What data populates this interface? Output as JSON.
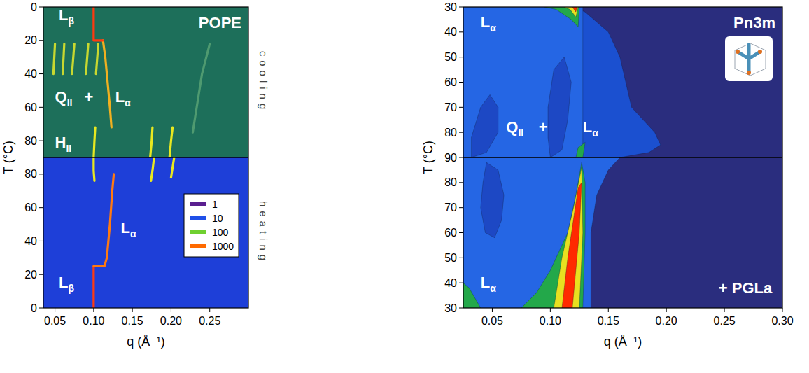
{
  "chart_data": [
    {
      "type": "heatmap",
      "title": "POPE",
      "xlabel": "q (Å⁻¹)",
      "ylabel": "T (°C)",
      "xlim": [
        0.035,
        0.3
      ],
      "xticks": [
        0.05,
        {
          "value": 0.1,
          "label": "0.10"
        },
        0.15,
        {
          "value": 0.2,
          "label": "0.20"
        },
        0.25
      ],
      "sections": [
        {
          "label": "cooling",
          "color": "#1d6f5a",
          "ylim": [
            0,
            90
          ],
          "yticks": [
            0,
            20,
            40,
            60,
            80
          ]
        },
        {
          "label": "heating",
          "color": "#1e3fd8",
          "ylim": [
            90,
            0
          ],
          "yticks": [
            0,
            20,
            40,
            60,
            80
          ]
        }
      ],
      "colorbar": {
        "values": [
          1,
          10,
          100,
          1000
        ],
        "colors": [
          "#5a1f8f",
          "#2050e8",
          "#6fd030",
          "#ff6a00"
        ]
      },
      "series": [
        {
          "section": 1,
          "type": "line",
          "color": "#ff3a10",
          "x": [
            0.1,
            0.1,
            0.1
          ],
          "y": [
            0,
            12,
            25
          ]
        },
        {
          "section": 1,
          "type": "line",
          "color": "#ff7a10",
          "x": [
            0.1,
            0.114,
            0.117,
            0.121,
            0.124,
            0.126
          ],
          "y": [
            25,
            25,
            30,
            50,
            70,
            80
          ]
        },
        {
          "section": 1,
          "type": "line",
          "color": "#e8e820",
          "x": [
            0.101,
            0.1,
            0.1
          ],
          "y": [
            76,
            82,
            90
          ]
        },
        {
          "section": 1,
          "type": "line",
          "color": "#e8e820",
          "x": [
            0.174,
            0.176,
            0.178
          ],
          "y": [
            76,
            82,
            90
          ]
        },
        {
          "section": 1,
          "type": "line",
          "color": "#e8e820",
          "x": [
            0.2,
            0.202,
            0.204
          ],
          "y": [
            78,
            84,
            90
          ]
        },
        {
          "section": 0,
          "type": "line",
          "color": "#e8e820",
          "x": [
            0.1,
            0.101,
            0.102
          ],
          "y": [
            90,
            80,
            72
          ]
        },
        {
          "section": 0,
          "type": "line",
          "color": "#e8e820",
          "x": [
            0.173,
            0.175,
            0.176
          ],
          "y": [
            90,
            80,
            72
          ]
        },
        {
          "section": 0,
          "type": "line",
          "color": "#e8e820",
          "x": [
            0.198,
            0.2,
            0.202
          ],
          "y": [
            90,
            80,
            72
          ]
        },
        {
          "section": 0,
          "type": "line",
          "color": "#f0b020",
          "x": [
            0.123,
            0.121,
            0.118,
            0.115,
            0.112
          ],
          "y": [
            72,
            60,
            45,
            30,
            20
          ]
        },
        {
          "section": 0,
          "type": "line",
          "color": "#ff3a10",
          "x": [
            0.1,
            0.1,
            0.112
          ],
          "y": [
            0,
            20,
            20
          ]
        },
        {
          "section": 0,
          "type": "line",
          "color": "#c8d830",
          "x": [
            0.048,
            0.05
          ],
          "y": [
            40,
            22
          ]
        },
        {
          "section": 0,
          "type": "line",
          "color": "#c8d830",
          "x": [
            0.06,
            0.062
          ],
          "y": [
            40,
            22
          ]
        },
        {
          "section": 0,
          "type": "line",
          "color": "#c8d830",
          "x": [
            0.072,
            0.075
          ],
          "y": [
            40,
            22
          ]
        },
        {
          "section": 0,
          "type": "line",
          "color": "#c8d830",
          "x": [
            0.09,
            0.093
          ],
          "y": [
            40,
            22
          ]
        },
        {
          "section": 0,
          "type": "line",
          "color": "#c8d830",
          "x": [
            0.103,
            0.106
          ],
          "y": [
            40,
            22
          ]
        },
        {
          "section": 0,
          "type": "line",
          "color": "#4f9a70",
          "x": [
            0.228,
            0.24,
            0.25
          ],
          "y": [
            75,
            40,
            22
          ]
        }
      ],
      "annotations": [
        {
          "text": "Lβ",
          "section": 0,
          "x": 0.055,
          "y": 8
        },
        {
          "text": "QII",
          "section": 0,
          "x": 0.05,
          "y": 57
        },
        {
          "text": "+",
          "section": 0,
          "x": 0.088,
          "y": 57
        },
        {
          "text": "Lα",
          "section": 0,
          "x": 0.128,
          "y": 57
        },
        {
          "text": "HII",
          "section": 0,
          "x": 0.05,
          "y": 84
        },
        {
          "text": "Lα",
          "section": 1,
          "x": 0.135,
          "y": 45
        },
        {
          "text": "Lβ",
          "section": 1,
          "x": 0.055,
          "y": 12
        }
      ]
    },
    {
      "type": "heatmap",
      "title": "Pn3m",
      "xlabel": "q (Å⁻¹)",
      "ylabel": "T (°C)",
      "xlim": [
        0.025,
        0.3
      ],
      "xticks": [
        0.05,
        {
          "value": 0.1,
          "label": "0.10"
        },
        0.15,
        {
          "value": 0.2,
          "label": "0.20"
        },
        0.25,
        {
          "value": 0.3,
          "label": "0.30"
        }
      ],
      "sections": [
        {
          "color": "#2a2d7e",
          "ylim": [
            30,
            90
          ],
          "yticks": [
            30,
            40,
            50,
            60,
            70,
            80,
            90
          ]
        },
        {
          "color": "#2a2d7e",
          "ylim": [
            90,
            30
          ],
          "yticks": [
            30,
            40,
            50,
            60,
            70,
            80
          ]
        }
      ],
      "series": [
        {
          "section": 1,
          "type": "polygon",
          "color": "#2566e4",
          "x": [
            0.025,
            0.135,
            0.135,
            0.14,
            0.15,
            0.16,
            0.025
          ],
          "y": [
            30,
            30,
            60,
            75,
            85,
            90,
            90
          ]
        },
        {
          "section": 1,
          "type": "polygon",
          "color": "#1d48c4",
          "x": [
            0.045,
            0.055,
            0.06,
            0.058,
            0.052,
            0.044,
            0.04,
            0.042
          ],
          "y": [
            88,
            85,
            75,
            65,
            58,
            60,
            70,
            80
          ]
        },
        {
          "section": 1,
          "type": "polygon",
          "color": "#23a84a",
          "x": [
            0.025,
            0.04,
            0.03,
            0.025
          ],
          "y": [
            30,
            30,
            38,
            40
          ]
        },
        {
          "section": 1,
          "type": "polygon",
          "color": "#23a84a",
          "x": [
            0.075,
            0.128,
            0.13,
            0.13,
            0.127,
            0.122,
            0.115,
            0.1,
            0.088
          ],
          "y": [
            30,
            30,
            60,
            80,
            88,
            75,
            60,
            45,
            36
          ]
        },
        {
          "section": 1,
          "type": "polygon",
          "color": "#e8e020",
          "x": [
            0.103,
            0.125,
            0.128,
            0.127,
            0.12,
            0.11
          ],
          "y": [
            30,
            30,
            60,
            86,
            70,
            50
          ]
        },
        {
          "section": 1,
          "type": "polygon",
          "color": "#ff2a00",
          "x": [
            0.11,
            0.119,
            0.125,
            0.127,
            0.124,
            0.115
          ],
          "y": [
            30,
            30,
            60,
            80,
            78,
            50
          ]
        },
        {
          "section": 0,
          "type": "polygon",
          "color": "#1b50d0",
          "x": [
            0.025,
            0.12,
            0.13,
            0.15,
            0.16,
            0.165,
            0.17,
            0.19,
            0.195,
            0.185,
            0.16,
            0.025
          ],
          "y": [
            30,
            30,
            32,
            40,
            50,
            60,
            70,
            80,
            85,
            88,
            90,
            90
          ]
        },
        {
          "section": 0,
          "type": "polygon",
          "color": "#2566e4",
          "x": [
            0.025,
            0.128,
            0.128,
            0.125,
            0.025
          ],
          "y": [
            30,
            30,
            88,
            90,
            90
          ]
        },
        {
          "section": 0,
          "type": "polygon",
          "color": "#1d48c4",
          "x": [
            0.032,
            0.045,
            0.055,
            0.055,
            0.048,
            0.04,
            0.032
          ],
          "y": [
            90,
            88,
            80,
            70,
            65,
            70,
            82
          ]
        },
        {
          "section": 0,
          "type": "polygon",
          "color": "#1d48c4",
          "x": [
            0.1,
            0.11,
            0.115,
            0.118,
            0.112,
            0.103,
            0.098,
            0.098
          ],
          "y": [
            90,
            87,
            75,
            60,
            50,
            55,
            70,
            82
          ]
        },
        {
          "section": 0,
          "type": "polygon",
          "color": "#23a84a",
          "x": [
            0.095,
            0.125,
            0.124,
            0.118,
            0.105
          ],
          "y": [
            30,
            30,
            38,
            35,
            31
          ]
        },
        {
          "section": 0,
          "type": "polygon",
          "color": "#e8e020",
          "x": [
            0.112,
            0.124,
            0.122,
            0.117
          ],
          "y": [
            30,
            30,
            34,
            31
          ]
        },
        {
          "section": 0,
          "type": "polygon",
          "color": "#ff2a00",
          "x": [
            0.119,
            0.123,
            0.122
          ],
          "y": [
            30,
            30,
            32
          ]
        },
        {
          "section": 0,
          "type": "polygon",
          "color": "#23a84a",
          "x": [
            0.122,
            0.128,
            0.13,
            0.124
          ],
          "y": [
            90,
            90,
            84,
            86
          ]
        }
      ],
      "annotations": [
        {
          "text": "Lα",
          "section": 0,
          "x": 0.04,
          "y": 38
        },
        {
          "text": "QII",
          "section": 0,
          "x": 0.062,
          "y": 80
        },
        {
          "text": "+",
          "section": 0,
          "x": 0.09,
          "y": 80
        },
        {
          "text": "Lα",
          "section": 0,
          "x": 0.128,
          "y": 80
        },
        {
          "text": "Lα",
          "section": 1,
          "x": 0.04,
          "y": 38
        },
        {
          "text": "+ PGLa",
          "section": 1,
          "x": 0.245,
          "y": 36
        }
      ]
    }
  ]
}
